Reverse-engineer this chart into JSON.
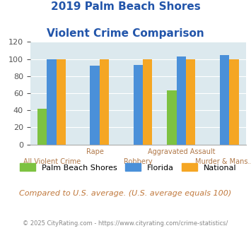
{
  "title_line1": "2019 Palm Beach Shores",
  "title_line2": "Violent Crime Comparison",
  "categories": [
    "All Violent Crime",
    "Rape",
    "Robbery",
    "Aggravated Assault",
    "Murder & Mans..."
  ],
  "cat_labels_upper": [
    "",
    "Rape",
    "",
    "Aggravated Assault",
    ""
  ],
  "cat_labels_lower": [
    "All Violent Crime",
    "",
    "Robbery",
    "",
    "Murder & Mans..."
  ],
  "series": {
    "Palm Beach Shores": [
      42,
      0,
      0,
      63,
      0
    ],
    "Florida": [
      100,
      92,
      93,
      103,
      105
    ],
    "National": [
      100,
      100,
      100,
      100,
      100
    ]
  },
  "colors": {
    "Palm Beach Shores": "#7dc241",
    "Florida": "#4a90d9",
    "National": "#f5a623"
  },
  "ylim": [
    0,
    120
  ],
  "yticks": [
    0,
    20,
    40,
    60,
    80,
    100,
    120
  ],
  "title_color": "#2255aa",
  "bg_color": "#dce9ee",
  "label_color": "#b07848",
  "note_text": "Compared to U.S. average. (U.S. average equals 100)",
  "note_color": "#c0783c",
  "footer_text": "© 2025 CityRating.com - https://www.cityrating.com/crime-statistics/",
  "footer_color": "#888888",
  "bar_width": 0.22
}
